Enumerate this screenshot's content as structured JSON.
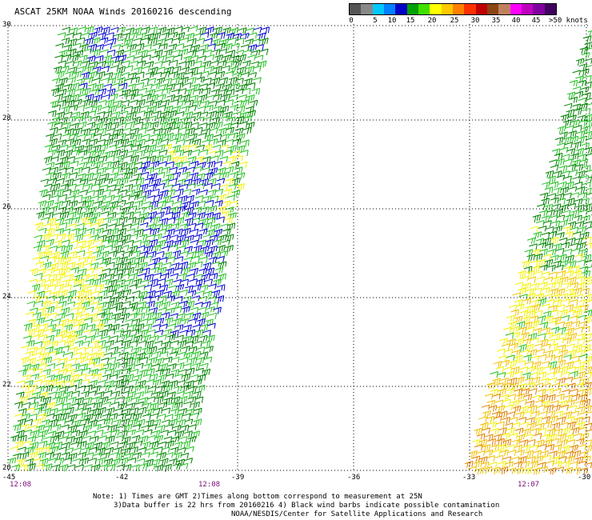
{
  "title": "ASCAT 25KM NOAA Winds 20160216 descending",
  "legend": {
    "colors": [
      "#555555",
      "#888888",
      "#00c8ff",
      "#0080ff",
      "#0000c8",
      "#00a000",
      "#40e000",
      "#ffff00",
      "#ffc800",
      "#ff8000",
      "#ff3000",
      "#c00000",
      "#8b4513",
      "#c08060",
      "#ff00ff",
      "#c000c0",
      "#8000a0",
      "#400060"
    ],
    "labels": [
      "0",
      "5",
      "10",
      "15",
      "20",
      "25",
      "30",
      "35",
      "40",
      "45",
      ">50 knots"
    ]
  },
  "map": {
    "lat_labels": [
      "30",
      "28",
      "26",
      "24",
      "22",
      "20"
    ],
    "lon_labels": [
      "-45",
      "-42",
      "-39",
      "-36",
      "-33",
      "-30"
    ],
    "times": [
      "12:08",
      "12:08",
      "12:07"
    ]
  },
  "notes": {
    "line1": "Note: 1) Times are GMT 2)Times along bottom correspond to measurement at 25N",
    "line2": "3)Data buffer is 22 hrs from 20160216 4) Black wind barbs indicate possible contamination",
    "line3": "NOAA/NESDIS/Center for Satellite Applications and Research"
  },
  "colors": {
    "green_dark": "#008000",
    "green": "#22c022",
    "yellow": "#f2f200",
    "gold": "#f0c000",
    "orange": "#e08000",
    "blue": "#0000d0"
  }
}
